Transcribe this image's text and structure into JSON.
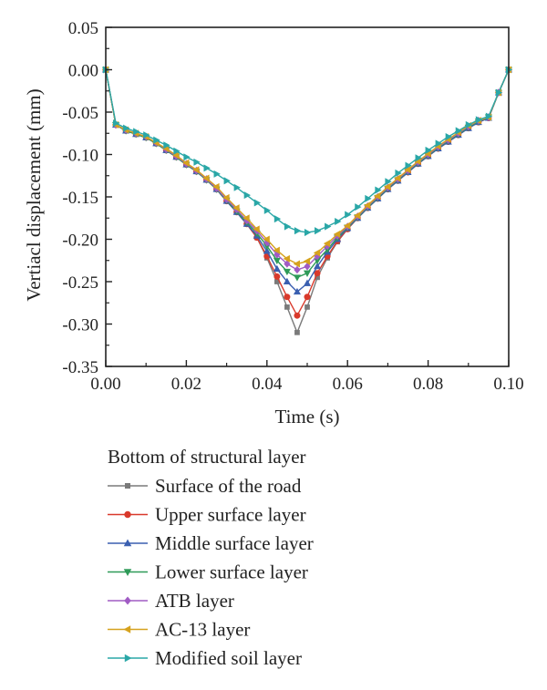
{
  "chart_data": {
    "type": "line",
    "title": "",
    "xlabel": "Time (s)",
    "ylabel": "Vertiacl displacement (mm)",
    "xlim": [
      0.0,
      0.1
    ],
    "ylim": [
      -0.35,
      0.05
    ],
    "xticks": [
      "0.00",
      "0.02",
      "0.04",
      "0.06",
      "0.08",
      "0.10"
    ],
    "yticks": [
      "0.05",
      "0.00",
      "-0.05",
      "-0.10",
      "-0.15",
      "-0.20",
      "-0.25",
      "-0.30",
      "-0.35"
    ],
    "grid": false,
    "legend_title": "Bottom of structural layer",
    "legend_position": "below",
    "x": [
      0.0,
      0.0025,
      0.005,
      0.0075,
      0.01,
      0.0125,
      0.015,
      0.0175,
      0.02,
      0.0225,
      0.025,
      0.0275,
      0.03,
      0.0325,
      0.035,
      0.0375,
      0.04,
      0.0425,
      0.045,
      0.0475,
      0.05,
      0.0525,
      0.055,
      0.0575,
      0.06,
      0.0625,
      0.065,
      0.0675,
      0.07,
      0.0725,
      0.075,
      0.0775,
      0.08,
      0.0825,
      0.085,
      0.0875,
      0.09,
      0.0925,
      0.095,
      0.0975,
      0.1
    ],
    "series": [
      {
        "name": "Surface of the road",
        "color": "#7a7a7a",
        "marker": "square",
        "values": [
          0.0,
          -0.065,
          -0.072,
          -0.076,
          -0.08,
          -0.087,
          -0.095,
          -0.103,
          -0.112,
          -0.12,
          -0.13,
          -0.141,
          -0.155,
          -0.168,
          -0.182,
          -0.198,
          -0.222,
          -0.25,
          -0.28,
          -0.31,
          -0.28,
          -0.245,
          -0.222,
          -0.203,
          -0.188,
          -0.175,
          -0.163,
          -0.152,
          -0.141,
          -0.131,
          -0.121,
          -0.111,
          -0.102,
          -0.093,
          -0.085,
          -0.077,
          -0.069,
          -0.062,
          -0.057,
          -0.027,
          0.0
        ]
      },
      {
        "name": "Upper surface layer",
        "color": "#d9392b",
        "marker": "circle",
        "values": [
          0.0,
          -0.065,
          -0.072,
          -0.076,
          -0.08,
          -0.087,
          -0.095,
          -0.103,
          -0.112,
          -0.12,
          -0.13,
          -0.141,
          -0.155,
          -0.168,
          -0.182,
          -0.198,
          -0.22,
          -0.244,
          -0.268,
          -0.29,
          -0.268,
          -0.24,
          -0.22,
          -0.202,
          -0.188,
          -0.175,
          -0.163,
          -0.152,
          -0.141,
          -0.131,
          -0.121,
          -0.111,
          -0.102,
          -0.093,
          -0.085,
          -0.077,
          -0.069,
          -0.062,
          -0.057,
          -0.027,
          0.0
        ]
      },
      {
        "name": "Middle surface layer",
        "color": "#3a5fb0",
        "marker": "triangle-up",
        "values": [
          0.0,
          -0.065,
          -0.072,
          -0.076,
          -0.08,
          -0.087,
          -0.095,
          -0.103,
          -0.112,
          -0.12,
          -0.13,
          -0.141,
          -0.155,
          -0.168,
          -0.182,
          -0.196,
          -0.214,
          -0.235,
          -0.25,
          -0.262,
          -0.252,
          -0.232,
          -0.215,
          -0.2,
          -0.187,
          -0.175,
          -0.163,
          -0.152,
          -0.141,
          -0.131,
          -0.121,
          -0.111,
          -0.102,
          -0.093,
          -0.085,
          -0.077,
          -0.069,
          -0.062,
          -0.057,
          -0.027,
          0.0
        ]
      },
      {
        "name": "Lower surface layer",
        "color": "#2e9a58",
        "marker": "triangle-down",
        "values": [
          0.0,
          -0.065,
          -0.072,
          -0.076,
          -0.08,
          -0.087,
          -0.095,
          -0.103,
          -0.112,
          -0.12,
          -0.13,
          -0.141,
          -0.154,
          -0.167,
          -0.18,
          -0.193,
          -0.208,
          -0.225,
          -0.238,
          -0.245,
          -0.24,
          -0.225,
          -0.212,
          -0.198,
          -0.186,
          -0.174,
          -0.162,
          -0.151,
          -0.14,
          -0.13,
          -0.12,
          -0.11,
          -0.101,
          -0.092,
          -0.084,
          -0.076,
          -0.068,
          -0.061,
          -0.056,
          -0.027,
          0.0
        ]
      },
      {
        "name": "ATB layer",
        "color": "#a05bc4",
        "marker": "diamond",
        "values": [
          0.0,
          -0.065,
          -0.071,
          -0.075,
          -0.079,
          -0.086,
          -0.094,
          -0.102,
          -0.111,
          -0.119,
          -0.129,
          -0.14,
          -0.153,
          -0.165,
          -0.178,
          -0.19,
          -0.204,
          -0.218,
          -0.229,
          -0.236,
          -0.232,
          -0.22,
          -0.208,
          -0.196,
          -0.185,
          -0.173,
          -0.161,
          -0.15,
          -0.139,
          -0.129,
          -0.119,
          -0.109,
          -0.1,
          -0.091,
          -0.083,
          -0.075,
          -0.067,
          -0.06,
          -0.056,
          -0.027,
          0.0
        ]
      },
      {
        "name": "AC-13 layer",
        "color": "#d6a21e",
        "marker": "triangle-left",
        "values": [
          0.0,
          -0.065,
          -0.071,
          -0.075,
          -0.079,
          -0.086,
          -0.093,
          -0.101,
          -0.11,
          -0.118,
          -0.128,
          -0.138,
          -0.151,
          -0.163,
          -0.175,
          -0.188,
          -0.2,
          -0.213,
          -0.223,
          -0.229,
          -0.226,
          -0.216,
          -0.205,
          -0.194,
          -0.184,
          -0.172,
          -0.16,
          -0.149,
          -0.138,
          -0.128,
          -0.118,
          -0.108,
          -0.099,
          -0.09,
          -0.082,
          -0.074,
          -0.066,
          -0.06,
          -0.056,
          -0.027,
          0.0
        ]
      },
      {
        "name": "Modified soil layer",
        "color": "#2aa7a7",
        "marker": "triangle-right",
        "values": [
          0.0,
          -0.063,
          -0.069,
          -0.073,
          -0.077,
          -0.083,
          -0.089,
          -0.096,
          -0.103,
          -0.109,
          -0.116,
          -0.123,
          -0.131,
          -0.139,
          -0.148,
          -0.157,
          -0.166,
          -0.176,
          -0.185,
          -0.19,
          -0.192,
          -0.19,
          -0.185,
          -0.179,
          -0.171,
          -0.162,
          -0.152,
          -0.142,
          -0.132,
          -0.122,
          -0.113,
          -0.104,
          -0.095,
          -0.087,
          -0.079,
          -0.072,
          -0.065,
          -0.059,
          -0.055,
          -0.027,
          0.0
        ]
      }
    ]
  }
}
